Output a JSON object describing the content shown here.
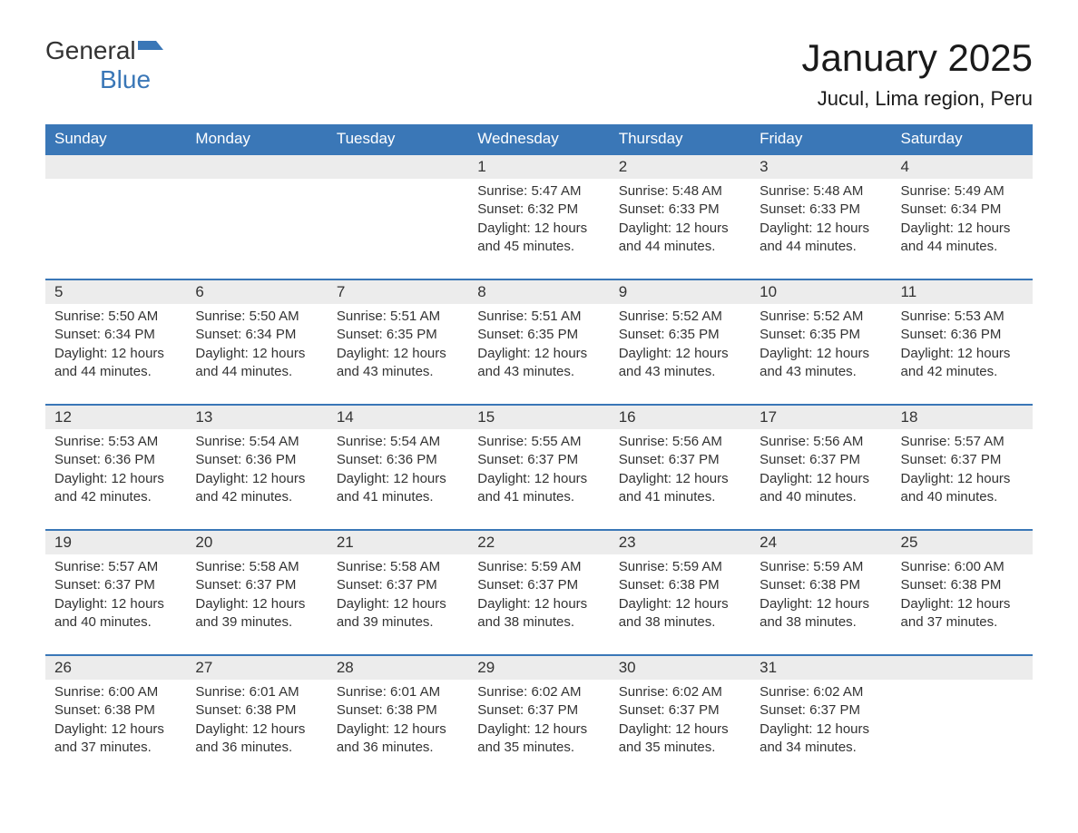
{
  "logo": {
    "text1": "General",
    "text2": "Blue",
    "text1_color": "#333333",
    "text2_color": "#3a77b7",
    "flag_color": "#3a77b7"
  },
  "header": {
    "title": "January 2025",
    "location": "Jucul, Lima region, Peru"
  },
  "styling": {
    "header_bg": "#3a77b7",
    "header_text": "#ffffff",
    "day_number_bg": "#ececec",
    "text_color": "#333333",
    "border_color": "#3a77b7",
    "background": "#ffffff",
    "title_fontsize": 42,
    "location_fontsize": 22,
    "dayname_fontsize": 17,
    "daynum_fontsize": 17,
    "content_fontsize": 15
  },
  "day_names": [
    "Sunday",
    "Monday",
    "Tuesday",
    "Wednesday",
    "Thursday",
    "Friday",
    "Saturday"
  ],
  "weeks": [
    [
      {
        "day": "",
        "sunrise": "",
        "sunset": "",
        "daylight": ""
      },
      {
        "day": "",
        "sunrise": "",
        "sunset": "",
        "daylight": ""
      },
      {
        "day": "",
        "sunrise": "",
        "sunset": "",
        "daylight": ""
      },
      {
        "day": "1",
        "sunrise": "Sunrise: 5:47 AM",
        "sunset": "Sunset: 6:32 PM",
        "daylight": "Daylight: 12 hours and 45 minutes."
      },
      {
        "day": "2",
        "sunrise": "Sunrise: 5:48 AM",
        "sunset": "Sunset: 6:33 PM",
        "daylight": "Daylight: 12 hours and 44 minutes."
      },
      {
        "day": "3",
        "sunrise": "Sunrise: 5:48 AM",
        "sunset": "Sunset: 6:33 PM",
        "daylight": "Daylight: 12 hours and 44 minutes."
      },
      {
        "day": "4",
        "sunrise": "Sunrise: 5:49 AM",
        "sunset": "Sunset: 6:34 PM",
        "daylight": "Daylight: 12 hours and 44 minutes."
      }
    ],
    [
      {
        "day": "5",
        "sunrise": "Sunrise: 5:50 AM",
        "sunset": "Sunset: 6:34 PM",
        "daylight": "Daylight: 12 hours and 44 minutes."
      },
      {
        "day": "6",
        "sunrise": "Sunrise: 5:50 AM",
        "sunset": "Sunset: 6:34 PM",
        "daylight": "Daylight: 12 hours and 44 minutes."
      },
      {
        "day": "7",
        "sunrise": "Sunrise: 5:51 AM",
        "sunset": "Sunset: 6:35 PM",
        "daylight": "Daylight: 12 hours and 43 minutes."
      },
      {
        "day": "8",
        "sunrise": "Sunrise: 5:51 AM",
        "sunset": "Sunset: 6:35 PM",
        "daylight": "Daylight: 12 hours and 43 minutes."
      },
      {
        "day": "9",
        "sunrise": "Sunrise: 5:52 AM",
        "sunset": "Sunset: 6:35 PM",
        "daylight": "Daylight: 12 hours and 43 minutes."
      },
      {
        "day": "10",
        "sunrise": "Sunrise: 5:52 AM",
        "sunset": "Sunset: 6:35 PM",
        "daylight": "Daylight: 12 hours and 43 minutes."
      },
      {
        "day": "11",
        "sunrise": "Sunrise: 5:53 AM",
        "sunset": "Sunset: 6:36 PM",
        "daylight": "Daylight: 12 hours and 42 minutes."
      }
    ],
    [
      {
        "day": "12",
        "sunrise": "Sunrise: 5:53 AM",
        "sunset": "Sunset: 6:36 PM",
        "daylight": "Daylight: 12 hours and 42 minutes."
      },
      {
        "day": "13",
        "sunrise": "Sunrise: 5:54 AM",
        "sunset": "Sunset: 6:36 PM",
        "daylight": "Daylight: 12 hours and 42 minutes."
      },
      {
        "day": "14",
        "sunrise": "Sunrise: 5:54 AM",
        "sunset": "Sunset: 6:36 PM",
        "daylight": "Daylight: 12 hours and 41 minutes."
      },
      {
        "day": "15",
        "sunrise": "Sunrise: 5:55 AM",
        "sunset": "Sunset: 6:37 PM",
        "daylight": "Daylight: 12 hours and 41 minutes."
      },
      {
        "day": "16",
        "sunrise": "Sunrise: 5:56 AM",
        "sunset": "Sunset: 6:37 PM",
        "daylight": "Daylight: 12 hours and 41 minutes."
      },
      {
        "day": "17",
        "sunrise": "Sunrise: 5:56 AM",
        "sunset": "Sunset: 6:37 PM",
        "daylight": "Daylight: 12 hours and 40 minutes."
      },
      {
        "day": "18",
        "sunrise": "Sunrise: 5:57 AM",
        "sunset": "Sunset: 6:37 PM",
        "daylight": "Daylight: 12 hours and 40 minutes."
      }
    ],
    [
      {
        "day": "19",
        "sunrise": "Sunrise: 5:57 AM",
        "sunset": "Sunset: 6:37 PM",
        "daylight": "Daylight: 12 hours and 40 minutes."
      },
      {
        "day": "20",
        "sunrise": "Sunrise: 5:58 AM",
        "sunset": "Sunset: 6:37 PM",
        "daylight": "Daylight: 12 hours and 39 minutes."
      },
      {
        "day": "21",
        "sunrise": "Sunrise: 5:58 AM",
        "sunset": "Sunset: 6:37 PM",
        "daylight": "Daylight: 12 hours and 39 minutes."
      },
      {
        "day": "22",
        "sunrise": "Sunrise: 5:59 AM",
        "sunset": "Sunset: 6:37 PM",
        "daylight": "Daylight: 12 hours and 38 minutes."
      },
      {
        "day": "23",
        "sunrise": "Sunrise: 5:59 AM",
        "sunset": "Sunset: 6:38 PM",
        "daylight": "Daylight: 12 hours and 38 minutes."
      },
      {
        "day": "24",
        "sunrise": "Sunrise: 5:59 AM",
        "sunset": "Sunset: 6:38 PM",
        "daylight": "Daylight: 12 hours and 38 minutes."
      },
      {
        "day": "25",
        "sunrise": "Sunrise: 6:00 AM",
        "sunset": "Sunset: 6:38 PM",
        "daylight": "Daylight: 12 hours and 37 minutes."
      }
    ],
    [
      {
        "day": "26",
        "sunrise": "Sunrise: 6:00 AM",
        "sunset": "Sunset: 6:38 PM",
        "daylight": "Daylight: 12 hours and 37 minutes."
      },
      {
        "day": "27",
        "sunrise": "Sunrise: 6:01 AM",
        "sunset": "Sunset: 6:38 PM",
        "daylight": "Daylight: 12 hours and 36 minutes."
      },
      {
        "day": "28",
        "sunrise": "Sunrise: 6:01 AM",
        "sunset": "Sunset: 6:38 PM",
        "daylight": "Daylight: 12 hours and 36 minutes."
      },
      {
        "day": "29",
        "sunrise": "Sunrise: 6:02 AM",
        "sunset": "Sunset: 6:37 PM",
        "daylight": "Daylight: 12 hours and 35 minutes."
      },
      {
        "day": "30",
        "sunrise": "Sunrise: 6:02 AM",
        "sunset": "Sunset: 6:37 PM",
        "daylight": "Daylight: 12 hours and 35 minutes."
      },
      {
        "day": "31",
        "sunrise": "Sunrise: 6:02 AM",
        "sunset": "Sunset: 6:37 PM",
        "daylight": "Daylight: 12 hours and 34 minutes."
      },
      {
        "day": "",
        "sunrise": "",
        "sunset": "",
        "daylight": ""
      }
    ]
  ]
}
